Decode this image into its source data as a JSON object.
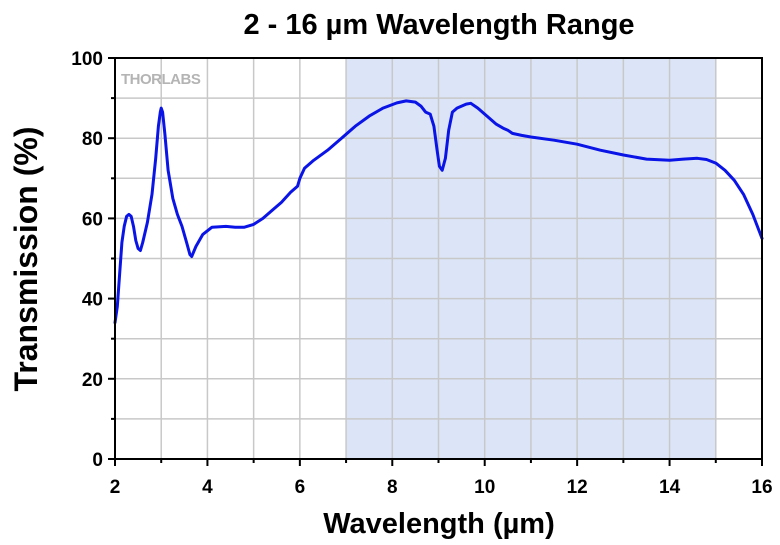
{
  "chart_data": {
    "type": "line",
    "title": "2 - 16 µm Wavelength Range",
    "xlabel": "Wavelength (µm)",
    "ylabel": "Transmission (%)",
    "xlim": [
      2,
      16
    ],
    "ylim": [
      0,
      100
    ],
    "x_ticks": [
      2,
      4,
      6,
      8,
      10,
      12,
      14,
      16
    ],
    "y_ticks": [
      0,
      20,
      40,
      60,
      80,
      100
    ],
    "grid": true,
    "shaded_region": {
      "x_start": 7,
      "x_end": 15,
      "color": "#dce5f7"
    },
    "watermark": "THORLABS",
    "colors": {
      "line": "#0a14e6",
      "grid": "#c8c8c8",
      "axis": "#000000",
      "shade": "#dce5f7"
    },
    "series": [
      {
        "points": [
          [
            2.0,
            34
          ],
          [
            2.05,
            38
          ],
          [
            2.1,
            46
          ],
          [
            2.15,
            54
          ],
          [
            2.2,
            58
          ],
          [
            2.25,
            60.5
          ],
          [
            2.3,
            61
          ],
          [
            2.35,
            60.5
          ],
          [
            2.4,
            58
          ],
          [
            2.45,
            54.5
          ],
          [
            2.5,
            52.5
          ],
          [
            2.55,
            52
          ],
          [
            2.6,
            54
          ],
          [
            2.7,
            59
          ],
          [
            2.8,
            66
          ],
          [
            2.88,
            75
          ],
          [
            2.94,
            83
          ],
          [
            2.98,
            86.5
          ],
          [
            3.0,
            87.5
          ],
          [
            3.03,
            86.5
          ],
          [
            3.08,
            81
          ],
          [
            3.15,
            72
          ],
          [
            3.25,
            65
          ],
          [
            3.35,
            61
          ],
          [
            3.45,
            58
          ],
          [
            3.55,
            54
          ],
          [
            3.62,
            51
          ],
          [
            3.66,
            50.5
          ],
          [
            3.75,
            53
          ],
          [
            3.9,
            56
          ],
          [
            4.1,
            57.8
          ],
          [
            4.4,
            58
          ],
          [
            4.6,
            57.8
          ],
          [
            4.8,
            57.8
          ],
          [
            5.0,
            58.5
          ],
          [
            5.2,
            60
          ],
          [
            5.4,
            62
          ],
          [
            5.6,
            64
          ],
          [
            5.8,
            66.5
          ],
          [
            5.95,
            68
          ],
          [
            6.0,
            70
          ],
          [
            6.1,
            72.5
          ],
          [
            6.3,
            74.5
          ],
          [
            6.6,
            77
          ],
          [
            6.9,
            80
          ],
          [
            7.2,
            83
          ],
          [
            7.5,
            85.5
          ],
          [
            7.8,
            87.5
          ],
          [
            8.1,
            88.8
          ],
          [
            8.3,
            89.3
          ],
          [
            8.5,
            89
          ],
          [
            8.62,
            88
          ],
          [
            8.72,
            86.5
          ],
          [
            8.82,
            86
          ],
          [
            8.9,
            83
          ],
          [
            8.97,
            77
          ],
          [
            9.02,
            73
          ],
          [
            9.08,
            72
          ],
          [
            9.15,
            75
          ],
          [
            9.22,
            82
          ],
          [
            9.3,
            86.5
          ],
          [
            9.4,
            87.5
          ],
          [
            9.5,
            88
          ],
          [
            9.6,
            88.5
          ],
          [
            9.7,
            88.7
          ],
          [
            9.85,
            87.5
          ],
          [
            10.05,
            85.5
          ],
          [
            10.25,
            83.5
          ],
          [
            10.4,
            82.5
          ],
          [
            10.5,
            82
          ],
          [
            10.6,
            81.2
          ],
          [
            10.8,
            80.7
          ],
          [
            11.0,
            80.3
          ],
          [
            11.5,
            79.5
          ],
          [
            12.0,
            78.5
          ],
          [
            12.5,
            77
          ],
          [
            13.0,
            75.8
          ],
          [
            13.5,
            74.8
          ],
          [
            14.0,
            74.5
          ],
          [
            14.3,
            74.8
          ],
          [
            14.6,
            75
          ],
          [
            14.8,
            74.7
          ],
          [
            15.0,
            73.8
          ],
          [
            15.2,
            72
          ],
          [
            15.4,
            69.5
          ],
          [
            15.6,
            66
          ],
          [
            15.8,
            61
          ],
          [
            16.0,
            55
          ]
        ]
      }
    ]
  }
}
